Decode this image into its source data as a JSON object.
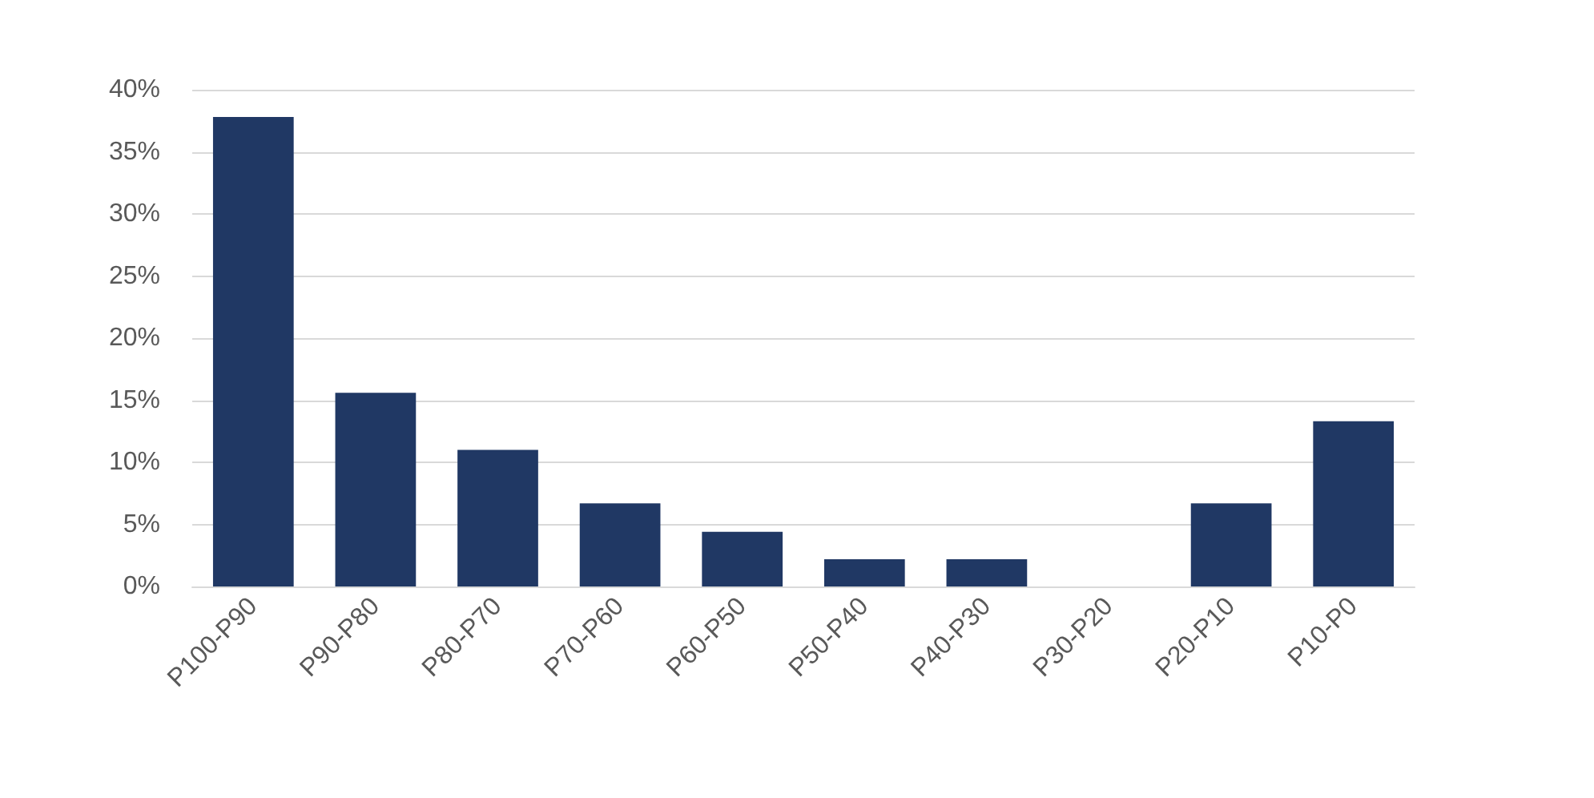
{
  "chart_data": {
    "type": "bar",
    "categories": [
      "P100-P90",
      "P90-P80",
      "P80-P70",
      "P70-P60",
      "P60-P50",
      "P50-P40",
      "P40-P30",
      "P30-P20",
      "P20-P10",
      "P10-P0"
    ],
    "values": [
      37.8,
      15.6,
      11.0,
      6.7,
      4.4,
      2.2,
      2.2,
      0,
      6.7,
      13.3
    ],
    "color": "#203864",
    "ylim": [
      0,
      40
    ],
    "yticks": [
      {
        "value": 0,
        "label": "0%"
      },
      {
        "value": 5,
        "label": "5%"
      },
      {
        "value": 10,
        "label": "10%"
      },
      {
        "value": 15,
        "label": "15%"
      },
      {
        "value": 20,
        "label": "20%"
      },
      {
        "value": 25,
        "label": "25%"
      },
      {
        "value": 30,
        "label": "30%"
      },
      {
        "value": 35,
        "label": "35%"
      },
      {
        "value": 40,
        "label": "40%"
      }
    ],
    "grid": "y"
  }
}
